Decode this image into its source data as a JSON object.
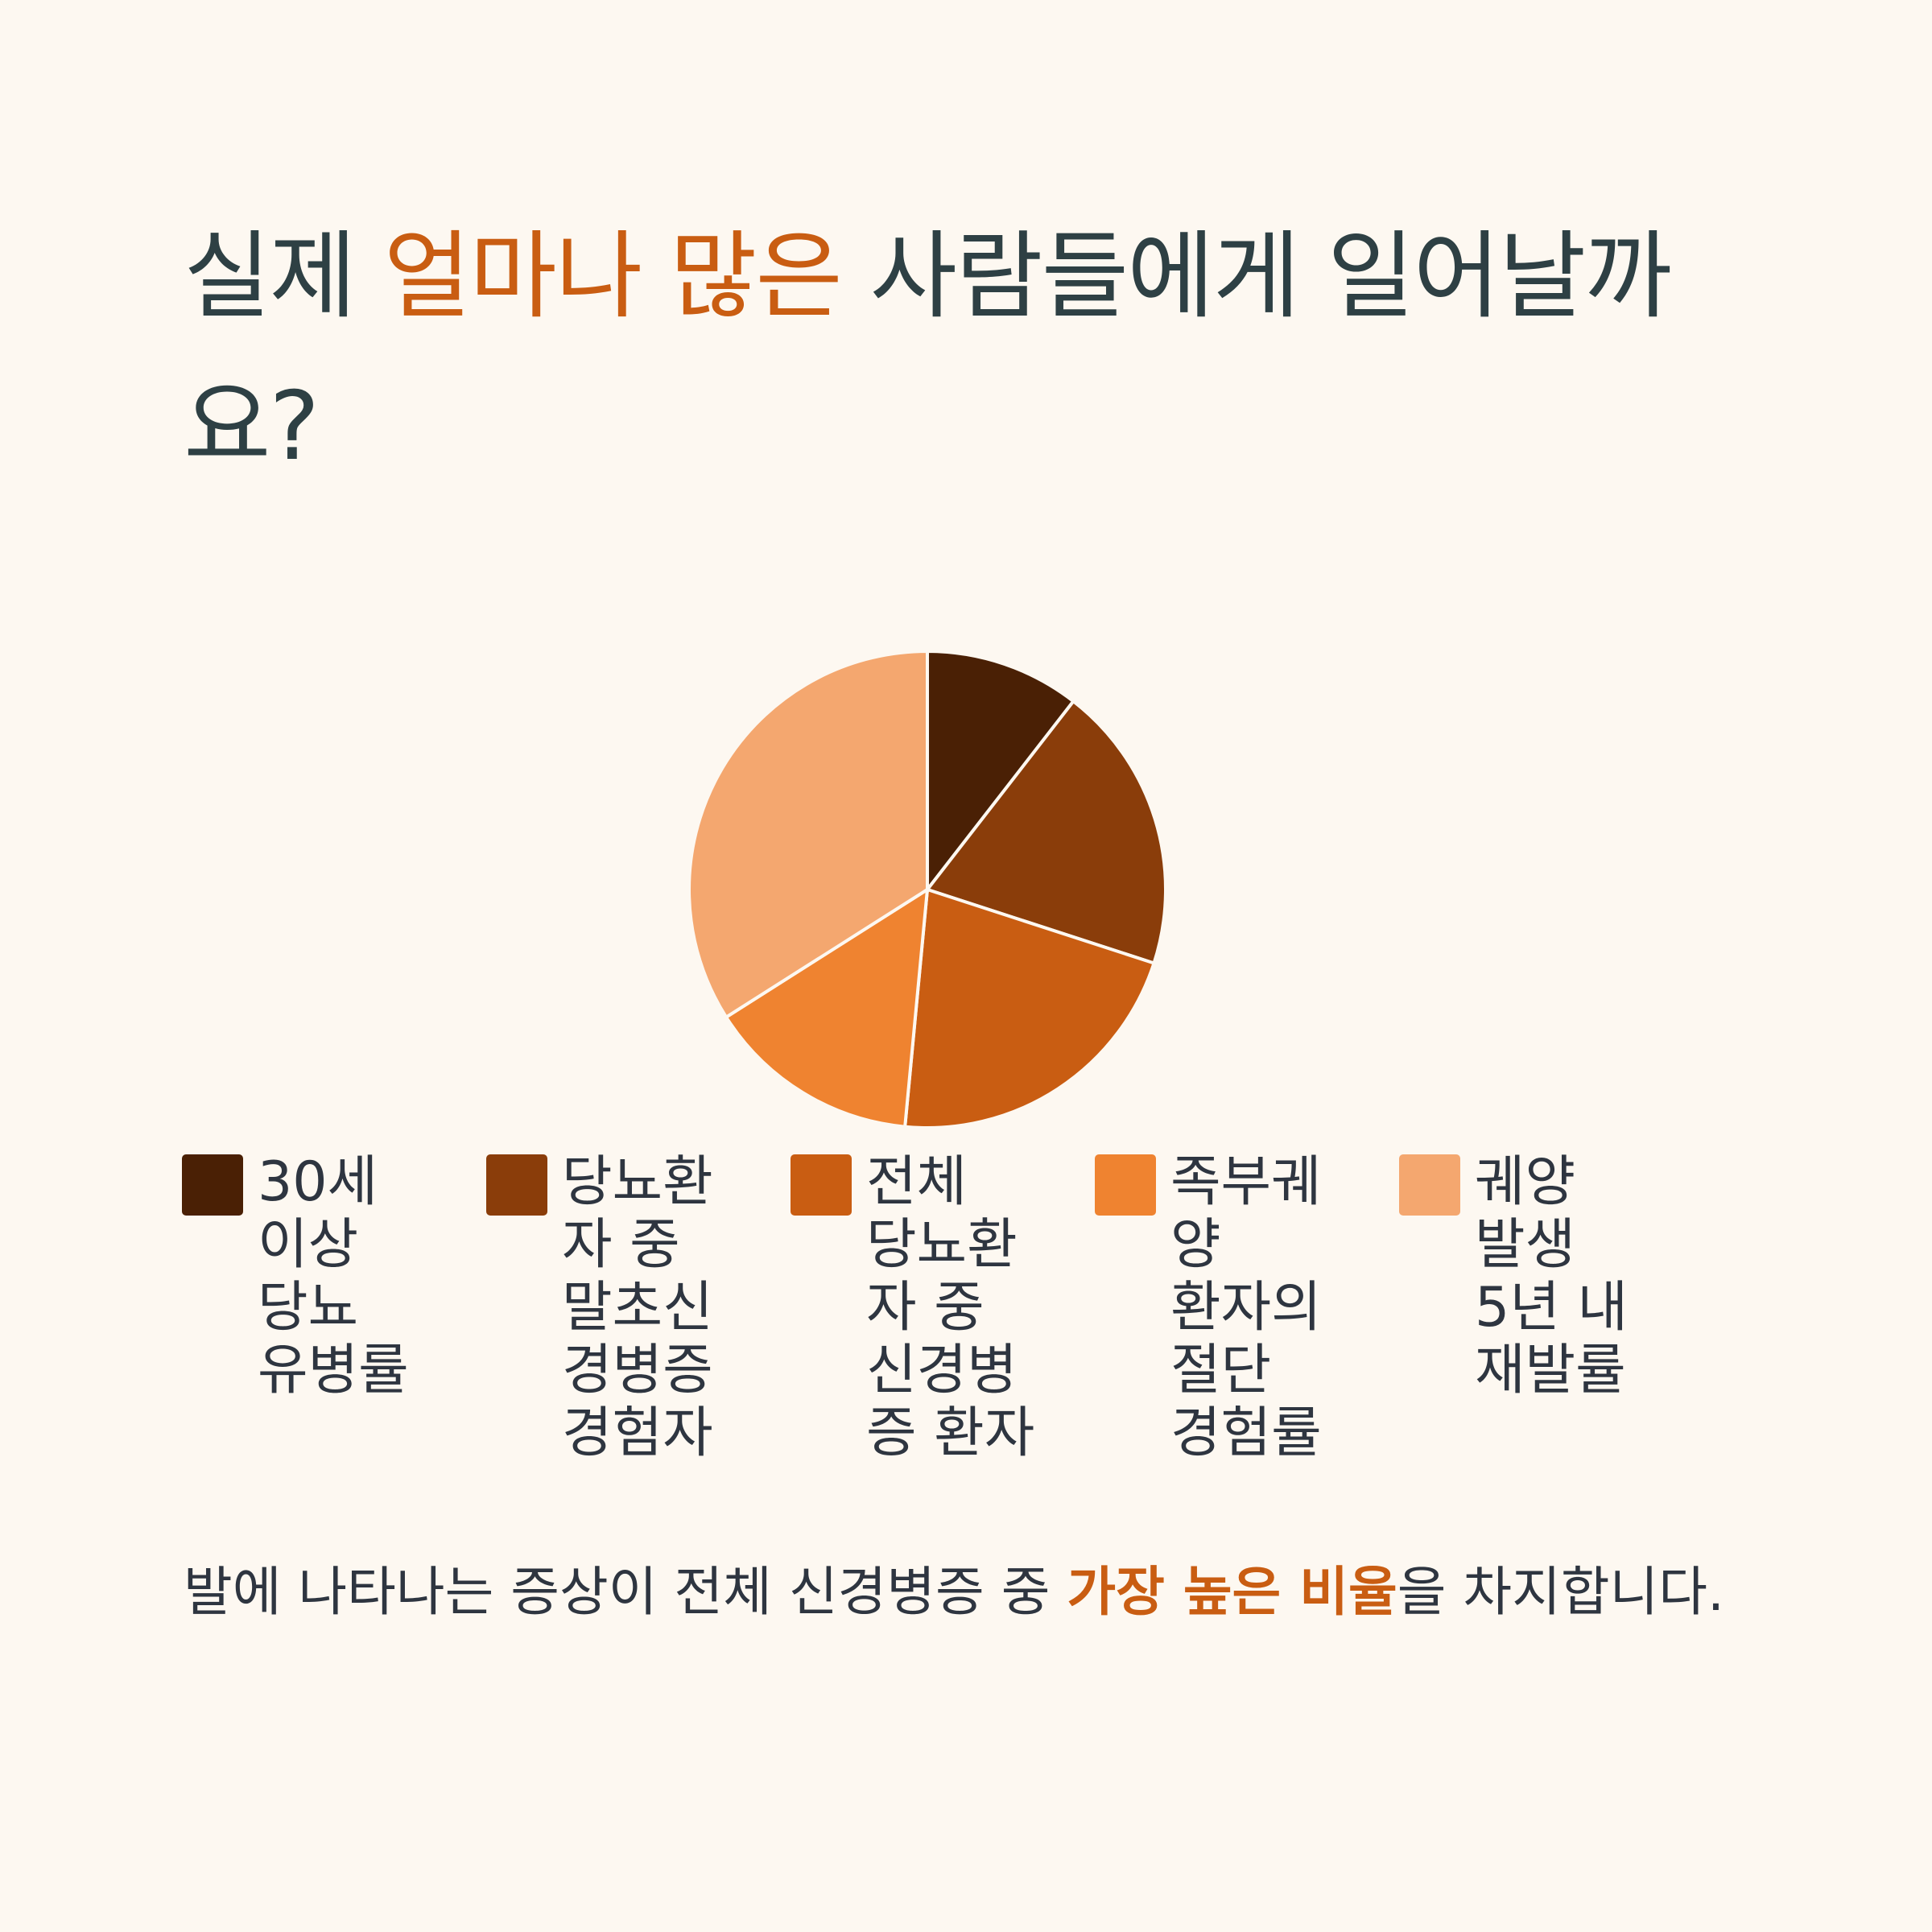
{
  "title": {
    "part1": "실제 ",
    "highlight": "얼마나 많은",
    "part2": " 사람들에게 일어날까요?"
  },
  "chart_data": {
    "type": "pie",
    "title": "",
    "categories": [
      "30세 이상 당뇨 유병률",
      "당뇨환자 중 말초신경병증 경험자",
      "전체 당뇨환자 중 신경병증 환자",
      "족부궤양 환자의 절단 경험률",
      "궤양 발생 5년 내 재발률"
    ],
    "values": [
      10.5,
      19.5,
      21.5,
      14.5,
      34
    ],
    "colors": [
      "#4a2005",
      "#8a3d0a",
      "#c95d12",
      "#ef8330",
      "#f4a76f"
    ],
    "legend": "bottom"
  },
  "legend": [
    {
      "label": "30세 이상 당뇨 유병률",
      "color": "#4a2005"
    },
    {
      "label": "당뇨환자 중 말초신경병증 경험자",
      "color": "#8a3d0a"
    },
    {
      "label": "전체 당뇨환자 중 신경병증 환자",
      "color": "#c95d12"
    },
    {
      "label": "족부궤양 환자의 절단 경험률",
      "color": "#ef8330"
    },
    {
      "label": "궤양 발생 5년 내 재발률",
      "color": "#f4a76f"
    }
  ],
  "description": {
    "part1": "발에 나타나는 증상이 전체 신경병증 중 ",
    "highlight": "가장 높은 비율",
    "part2": "을 차지합니다."
  },
  "colors": {
    "background": "#fdf8f1",
    "text": "#2e4044",
    "accent": "#c95d12"
  }
}
